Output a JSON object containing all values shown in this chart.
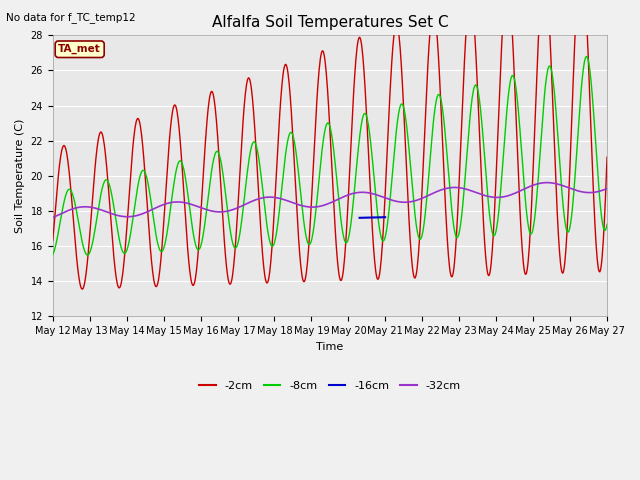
{
  "title": "Alfalfa Soil Temperatures Set C",
  "xlabel": "Time",
  "ylabel": "Soil Temperature (C)",
  "ylim": [
    12,
    28
  ],
  "xlim_days": [
    12,
    27
  ],
  "note": "No data for f_TC_temp12",
  "ta_met_label": "TA_met",
  "plot_bg": "#e8e8e8",
  "fig_bg": "#f0f0f0",
  "legend_entries": [
    "-2cm",
    "-8cm",
    "-16cm",
    "-32cm"
  ],
  "legend_colors": [
    "#cc0000",
    "#00cc00",
    "#0000cc",
    "#9933cc"
  ],
  "x_ticks": [
    12,
    13,
    14,
    15,
    16,
    17,
    18,
    19,
    20,
    21,
    22,
    23,
    24,
    25,
    26,
    27
  ],
  "x_tick_labels": [
    "May 12",
    "May 13",
    "May 14",
    "May 15",
    "May 16",
    "May 17",
    "May 18",
    "May 19",
    "May 20",
    "May 21",
    "May 22",
    "May 23",
    "May 24",
    "May 25",
    "May 26",
    "May 27"
  ],
  "y_ticks": [
    12,
    14,
    16,
    18,
    20,
    22,
    24,
    26,
    28
  ],
  "grid_color": "#cccccc",
  "title_fontsize": 11,
  "axis_fontsize": 8,
  "tick_fontsize": 7
}
